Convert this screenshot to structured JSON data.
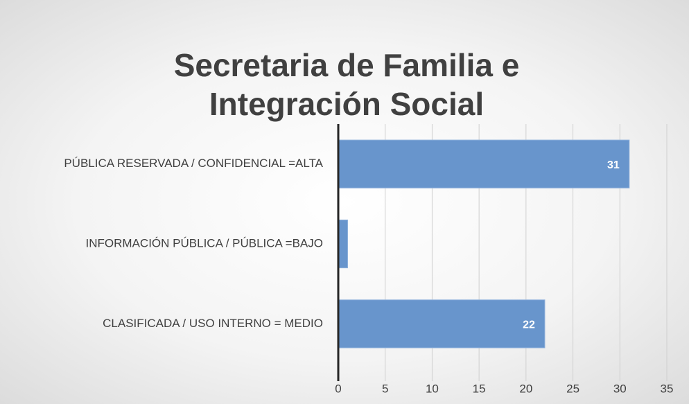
{
  "chart_data": {
    "type": "bar",
    "orientation": "horizontal",
    "title": "Secretaria de Familia e Integración Social",
    "categories": [
      "PÚBLICA RESERVADA  / CONFIDENCIAL =ALTA",
      "INFORMACIÓN  PÚBLICA / PÚBLICA =BAJO",
      "CLASIFICADA / USO INTERNO = MEDIO"
    ],
    "values": [
      31,
      1,
      22
    ],
    "value_labels": [
      "31",
      null,
      "22"
    ],
    "color": "#6895cc",
    "xlim": [
      0,
      35
    ],
    "xticks": [
      0,
      5,
      10,
      15,
      20,
      25,
      30,
      35
    ],
    "grid": true
  }
}
